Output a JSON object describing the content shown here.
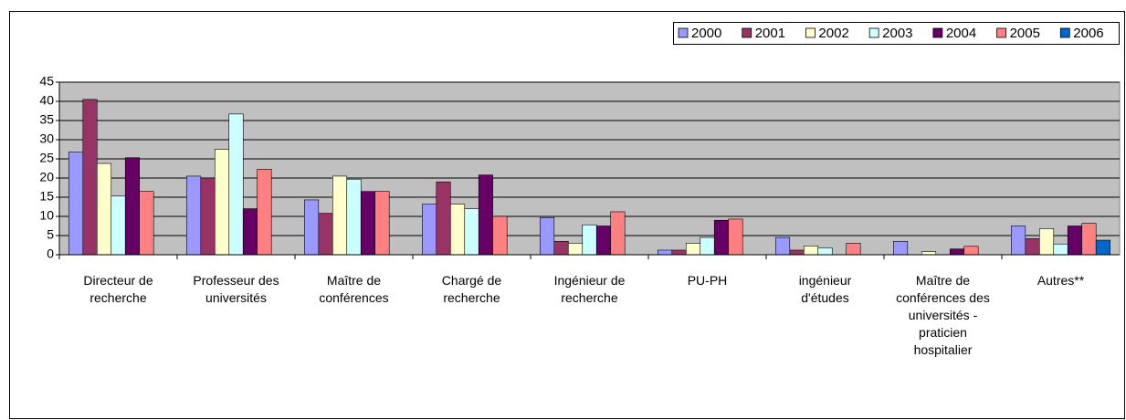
{
  "chart_data": {
    "type": "bar",
    "categories": [
      "Directeur de recherche",
      "Professeur des universités",
      "Maître de conférences",
      "Chargé de recherche",
      "Ingénieur de recherche",
      "PU-PH",
      "ingénieur d'études",
      "Maître de conférences des universités - praticien hospitalier",
      "Autres**"
    ],
    "series": [
      {
        "name": "2000",
        "color": "#9999ff",
        "values": [
          26.8,
          20.5,
          14.3,
          13.2,
          9.7,
          1.2,
          4.5,
          3.5,
          7.5
        ]
      },
      {
        "name": "2001",
        "color": "#993366",
        "values": [
          40.5,
          20,
          10.8,
          19,
          3.5,
          1.2,
          1.2,
          null,
          4.2
        ]
      },
      {
        "name": "2002",
        "color": "#ffffcc",
        "values": [
          23.8,
          27.5,
          20.5,
          13.2,
          3,
          3,
          2.3,
          0.8,
          6.8
        ]
      },
      {
        "name": "2003",
        "color": "#ccffff",
        "values": [
          15.3,
          36.7,
          19.7,
          12,
          7.8,
          4.5,
          1.8,
          null,
          2.8
        ]
      },
      {
        "name": "2004",
        "color": "#660066",
        "values": [
          25.3,
          12,
          16.5,
          20.8,
          7.5,
          9,
          null,
          1.5,
          7.5
        ]
      },
      {
        "name": "2005",
        "color": "#ff8080",
        "values": [
          16.5,
          22.3,
          16.5,
          10,
          11.2,
          9.3,
          3,
          2.2,
          8.2
        ]
      },
      {
        "name": "2006",
        "color": "#0066cc",
        "values": [
          null,
          null,
          null,
          null,
          null,
          null,
          null,
          null,
          3.8
        ]
      }
    ],
    "ylim": [
      0,
      45
    ],
    "yticks": [
      0,
      5,
      10,
      15,
      20,
      25,
      30,
      35,
      40,
      45
    ],
    "grid": true,
    "legend": "top-right"
  }
}
